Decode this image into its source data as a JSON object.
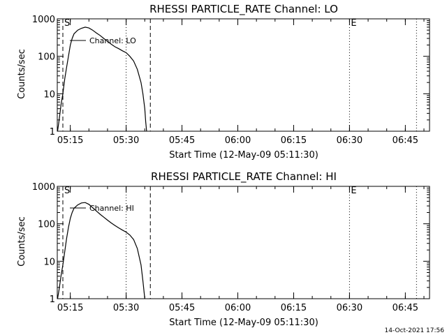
{
  "chart_data": [
    {
      "type": "line",
      "title": "RHESSI PARTICLE_RATE Channel: LO",
      "xlabel": "Start Time (12-May-09 05:11:30)",
      "ylabel": "Counts/sec",
      "y_scale": "log",
      "ylim": [
        1,
        1000
      ],
      "xlim": [
        "05:11:30",
        "06:51:30"
      ],
      "x_ticks": [
        "05:15",
        "05:30",
        "05:45",
        "06:00",
        "06:15",
        "06:30",
        "06:45"
      ],
      "y_ticks": [
        "1",
        "10",
        "100",
        "1000"
      ],
      "grid": false,
      "legend_position": "top-left",
      "series": [
        {
          "name": "Channel: LO",
          "points": [
            [
              "05:11:35",
              1.0
            ],
            [
              "05:12:00",
              2.0
            ],
            [
              "05:12:30",
              5.0
            ],
            [
              "05:13:00",
              10.0
            ],
            [
              "05:13:30",
              25.0
            ],
            [
              "05:14:00",
              50.0
            ],
            [
              "05:14:30",
              100.0
            ],
            [
              "05:15:00",
              200.0
            ],
            [
              "05:15:30",
              300.0
            ],
            [
              "05:16:00",
              400.0
            ],
            [
              "05:17:00",
              500.0
            ],
            [
              "05:18:00",
              560.0
            ],
            [
              "05:19:00",
              600.0
            ],
            [
              "05:20:00",
              570.0
            ],
            [
              "05:21:00",
              500.0
            ],
            [
              "05:22:00",
              420.0
            ],
            [
              "05:23:00",
              360.0
            ],
            [
              "05:24:00",
              300.0
            ],
            [
              "05:25:00",
              250.0
            ],
            [
              "05:26:00",
              210.0
            ],
            [
              "05:27:00",
              180.0
            ],
            [
              "05:28:00",
              160.0
            ],
            [
              "05:29:00",
              140.0
            ],
            [
              "05:30:00",
              125.0
            ],
            [
              "05:31:00",
              100.0
            ],
            [
              "05:32:00",
              75.0
            ],
            [
              "05:33:00",
              45.0
            ],
            [
              "05:34:00",
              20.0
            ],
            [
              "05:34:30",
              10.0
            ],
            [
              "05:35:00",
              4.0
            ],
            [
              "05:35:15",
              1.8
            ],
            [
              "05:35:30",
              1.0
            ]
          ]
        }
      ],
      "vertical_lines": [
        {
          "time": "05:13:00",
          "style": "dashed",
          "label": "S"
        },
        {
          "time": "05:36:30",
          "style": "dashed",
          "label": ""
        },
        {
          "time": "05:30:00",
          "style": "dotted",
          "label": ""
        },
        {
          "time": "06:30:00",
          "style": "dotted",
          "label": "E"
        },
        {
          "time": "06:48:00",
          "style": "dotted",
          "label": ""
        }
      ]
    },
    {
      "type": "line",
      "title": "RHESSI PARTICLE_RATE Channel: HI",
      "xlabel": "Start Time (12-May-09 05:11:30)",
      "ylabel": "Counts/sec",
      "y_scale": "log",
      "ylim": [
        1,
        1000
      ],
      "xlim": [
        "05:11:30",
        "06:51:30"
      ],
      "x_ticks": [
        "05:15",
        "05:30",
        "05:45",
        "06:00",
        "06:15",
        "06:30",
        "06:45"
      ],
      "y_ticks": [
        "1",
        "10",
        "100",
        "1000"
      ],
      "grid": false,
      "legend_position": "top-left",
      "series": [
        {
          "name": "Channel: HI",
          "points": [
            [
              "05:11:35",
              1.0
            ],
            [
              "05:12:00",
              1.8
            ],
            [
              "05:12:30",
              4.0
            ],
            [
              "05:13:00",
              8.0
            ],
            [
              "05:13:30",
              18.0
            ],
            [
              "05:14:00",
              40.0
            ],
            [
              "05:14:30",
              80.0
            ],
            [
              "05:15:00",
              140.0
            ],
            [
              "05:15:30",
              200.0
            ],
            [
              "05:16:00",
              260.0
            ],
            [
              "05:17:00",
              320.0
            ],
            [
              "05:18:00",
              360.0
            ],
            [
              "05:19:00",
              370.0
            ],
            [
              "05:20:00",
              330.0
            ],
            [
              "05:21:00",
              270.0
            ],
            [
              "05:22:00",
              220.0
            ],
            [
              "05:23:00",
              180.0
            ],
            [
              "05:24:00",
              150.0
            ],
            [
              "05:25:00",
              125.0
            ],
            [
              "05:26:00",
              105.0
            ],
            [
              "05:27:00",
              90.0
            ],
            [
              "05:28:00",
              78.0
            ],
            [
              "05:29:00",
              68.0
            ],
            [
              "05:30:00",
              60.0
            ],
            [
              "05:31:00",
              50.0
            ],
            [
              "05:32:00",
              38.0
            ],
            [
              "05:33:00",
              22.0
            ],
            [
              "05:34:00",
              8.0
            ],
            [
              "05:34:30",
              3.0
            ],
            [
              "05:35:00",
              1.0
            ]
          ]
        }
      ],
      "vertical_lines": [
        {
          "time": "05:13:00",
          "style": "dashed",
          "label": "S"
        },
        {
          "time": "05:36:30",
          "style": "dashed",
          "label": ""
        },
        {
          "time": "05:30:00",
          "style": "dotted",
          "label": ""
        },
        {
          "time": "06:30:00",
          "style": "dotted",
          "label": "E"
        },
        {
          "time": "06:48:00",
          "style": "dotted",
          "label": ""
        }
      ]
    }
  ],
  "footer": {
    "timestamp": "14-Oct-2021 17:56"
  }
}
